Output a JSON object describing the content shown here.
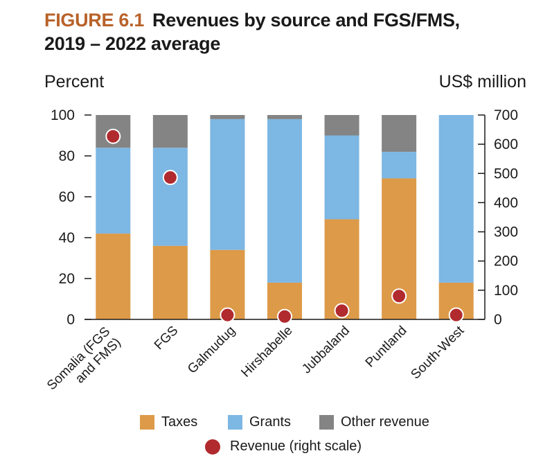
{
  "figure": {
    "label": "FIGURE 6.1",
    "title_line1": "Revenues by source and FGS/FMS,",
    "title_line2": "2019 – 2022 average"
  },
  "colors": {
    "taxes": "#dd9a48",
    "grants": "#7db7e3",
    "other": "#848484",
    "revenue": "#b02a2e",
    "label": "#b8622a"
  },
  "legend": {
    "taxes": "Taxes",
    "grants": "Grants",
    "other": "Other revenue",
    "revenue": "Revenue (right scale)"
  },
  "chart_data": {
    "type": "bar",
    "stacked": true,
    "categories": [
      "Somalia (FGS and FMS)",
      "FGS",
      "Galmudug",
      "Hirshabelle",
      "Jubbaland",
      "Puntland",
      "South-West"
    ],
    "category_lines": [
      [
        "Somalia (FGS",
        "and FMS)"
      ],
      [
        "FGS"
      ],
      [
        "Galmudug"
      ],
      [
        "Hirshabelle"
      ],
      [
        "Jubbaland"
      ],
      [
        "Puntland"
      ],
      [
        "South-West"
      ]
    ],
    "series": [
      {
        "name": "Taxes",
        "values": [
          42,
          36,
          34,
          18,
          49,
          69,
          18
        ]
      },
      {
        "name": "Grants",
        "values": [
          42,
          48,
          64,
          80,
          41,
          13,
          82
        ]
      },
      {
        "name": "Other revenue",
        "values": [
          16,
          16,
          2,
          2,
          10,
          18,
          0
        ]
      }
    ],
    "line_series": {
      "name": "Revenue (right scale)",
      "axis": "right",
      "values": [
        627,
        486,
        15,
        10,
        30,
        80,
        15
      ]
    },
    "ylabel_left": "Percent",
    "ylabel_right": "US$ million",
    "ylim_left": [
      0,
      100
    ],
    "ylim_right": [
      0,
      700
    ],
    "yticks_left": [
      0,
      20,
      40,
      60,
      80,
      100
    ],
    "yticks_right": [
      0,
      100,
      200,
      300,
      400,
      500,
      600,
      700
    ],
    "legend_position": "bottom"
  }
}
